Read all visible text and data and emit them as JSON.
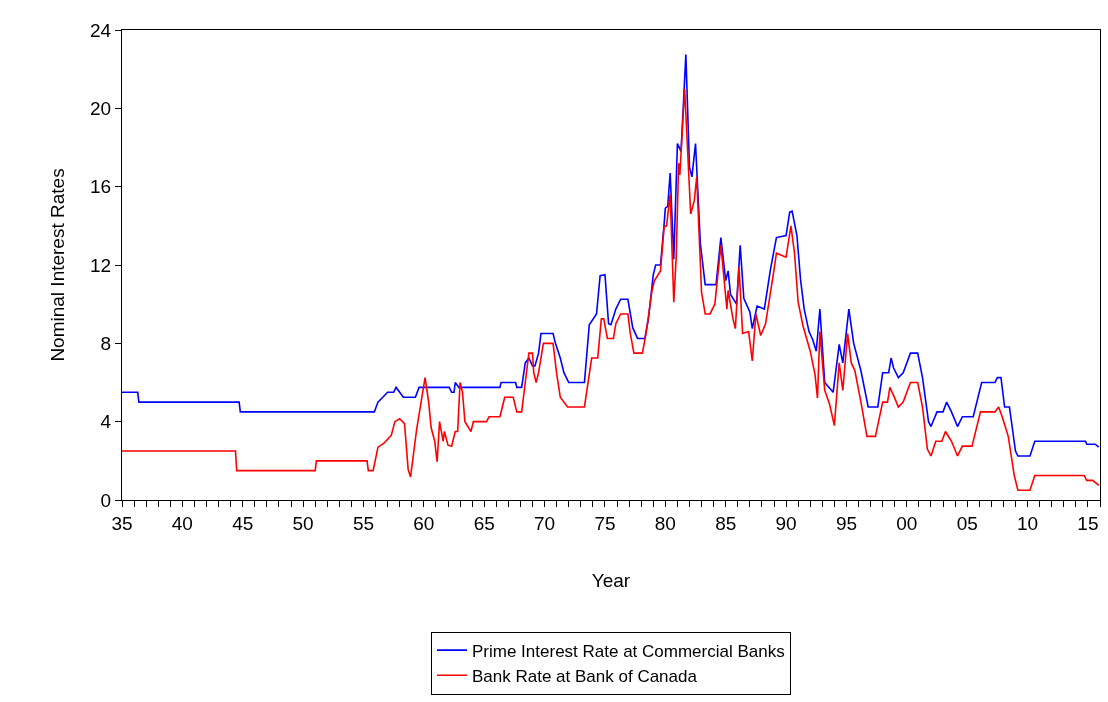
{
  "chart_data": {
    "type": "line",
    "xlabel": "Year",
    "ylabel": "Nominal Interest Rates",
    "legend": "bottom",
    "xlim": [
      1935,
      2016
    ],
    "ylim": [
      0,
      24
    ],
    "yticks": [
      0,
      4,
      8,
      12,
      16,
      20,
      24
    ],
    "xticks": [
      {
        "value": 1935,
        "label": "35"
      },
      {
        "value": 1936,
        "label": null
      },
      {
        "value": 1937,
        "label": null
      },
      {
        "value": 1938,
        "label": null
      },
      {
        "value": 1939,
        "label": null
      },
      {
        "value": 1940,
        "label": "40"
      },
      {
        "value": 1941,
        "label": null
      },
      {
        "value": 1942,
        "label": null
      },
      {
        "value": 1943,
        "label": null
      },
      {
        "value": 1944,
        "label": null
      },
      {
        "value": 1945,
        "label": "45"
      },
      {
        "value": 1946,
        "label": null
      },
      {
        "value": 1947,
        "label": null
      },
      {
        "value": 1948,
        "label": null
      },
      {
        "value": 1949,
        "label": null
      },
      {
        "value": 1950,
        "label": "50"
      },
      {
        "value": 1951,
        "label": null
      },
      {
        "value": 1952,
        "label": null
      },
      {
        "value": 1953,
        "label": null
      },
      {
        "value": 1954,
        "label": null
      },
      {
        "value": 1955,
        "label": "55"
      },
      {
        "value": 1956,
        "label": null
      },
      {
        "value": 1957,
        "label": null
      },
      {
        "value": 1958,
        "label": null
      },
      {
        "value": 1959,
        "label": null
      },
      {
        "value": 1960,
        "label": "60"
      },
      {
        "value": 1961,
        "label": null
      },
      {
        "value": 1962,
        "label": null
      },
      {
        "value": 1963,
        "label": null
      },
      {
        "value": 1964,
        "label": null
      },
      {
        "value": 1965,
        "label": "65"
      },
      {
        "value": 1966,
        "label": null
      },
      {
        "value": 1967,
        "label": null
      },
      {
        "value": 1968,
        "label": null
      },
      {
        "value": 1969,
        "label": null
      },
      {
        "value": 1970,
        "label": "70"
      },
      {
        "value": 1971,
        "label": null
      },
      {
        "value": 1972,
        "label": null
      },
      {
        "value": 1973,
        "label": null
      },
      {
        "value": 1974,
        "label": null
      },
      {
        "value": 1975,
        "label": "75"
      },
      {
        "value": 1976,
        "label": null
      },
      {
        "value": 1977,
        "label": null
      },
      {
        "value": 1978,
        "label": null
      },
      {
        "value": 1979,
        "label": null
      },
      {
        "value": 1980,
        "label": "80"
      },
      {
        "value": 1981,
        "label": null
      },
      {
        "value": 1982,
        "label": null
      },
      {
        "value": 1983,
        "label": null
      },
      {
        "value": 1984,
        "label": null
      },
      {
        "value": 1985,
        "label": "85"
      },
      {
        "value": 1986,
        "label": null
      },
      {
        "value": 1987,
        "label": null
      },
      {
        "value": 1988,
        "label": null
      },
      {
        "value": 1989,
        "label": null
      },
      {
        "value": 1990,
        "label": "90"
      },
      {
        "value": 1991,
        "label": null
      },
      {
        "value": 1992,
        "label": null
      },
      {
        "value": 1993,
        "label": null
      },
      {
        "value": 1994,
        "label": null
      },
      {
        "value": 1995,
        "label": "95"
      },
      {
        "value": 1996,
        "label": null
      },
      {
        "value": 1997,
        "label": null
      },
      {
        "value": 1998,
        "label": null
      },
      {
        "value": 1999,
        "label": null
      },
      {
        "value": 2000,
        "label": "00"
      },
      {
        "value": 2001,
        "label": null
      },
      {
        "value": 2002,
        "label": null
      },
      {
        "value": 2003,
        "label": null
      },
      {
        "value": 2004,
        "label": null
      },
      {
        "value": 2005,
        "label": "05"
      },
      {
        "value": 2006,
        "label": null
      },
      {
        "value": 2007,
        "label": null
      },
      {
        "value": 2008,
        "label": null
      },
      {
        "value": 2009,
        "label": null
      },
      {
        "value": 2010,
        "label": "10"
      },
      {
        "value": 2011,
        "label": null
      },
      {
        "value": 2012,
        "label": null
      },
      {
        "value": 2013,
        "label": null
      },
      {
        "value": 2014,
        "label": null
      },
      {
        "value": 2015,
        "label": "15"
      },
      {
        "value": 2016,
        "label": null
      }
    ],
    "series": [
      {
        "name": "Prime Interest Rate at Commercial Banks",
        "color": "#0000ff",
        "x": [
          1935,
          1936.3,
          1936.4,
          1944.7,
          1944.8,
          1955.9,
          1956.2,
          1956.6,
          1957.0,
          1957.5,
          1957.7,
          1958.0,
          1958.3,
          1959.3,
          1959.6,
          1962.1,
          1962.3,
          1962.5,
          1962.6,
          1962.9,
          1966.3,
          1966.4,
          1967.6,
          1967.7,
          1968.1,
          1968.4,
          1968.7,
          1969.0,
          1969.2,
          1969.5,
          1969.7,
          1970.7,
          1970.9,
          1971.3,
          1971.6,
          1972.0,
          1973.3,
          1973.7,
          1974.3,
          1974.6,
          1975.0,
          1975.3,
          1975.5,
          1975.9,
          1976.3,
          1976.9,
          1977.3,
          1977.7,
          1978.3,
          1978.6,
          1979.0,
          1979.2,
          1979.6,
          1979.9,
          1980.0,
          1980.2,
          1980.4,
          1980.7,
          1981.0,
          1981.3,
          1981.7,
          1982.0,
          1982.2,
          1982.5,
          1982.9,
          1983.3,
          1984.2,
          1984.6,
          1985.0,
          1985.2,
          1985.4,
          1985.9,
          1986.2,
          1986.5,
          1987.0,
          1987.2,
          1987.6,
          1988.2,
          1988.7,
          1989.2,
          1990.0,
          1990.3,
          1990.5,
          1990.9,
          1991.2,
          1991.5,
          1991.9,
          1992.2,
          1992.5,
          1992.8,
          1993.2,
          1993.9,
          1994.4,
          1994.7,
          1995.2,
          1995.6,
          1996.2,
          1996.8,
          1997.6,
          1998.0,
          1998.5,
          1998.7,
          1998.9,
          1999.3,
          1999.7,
          2000.3,
          2000.9,
          2001.3,
          2001.8,
          2002.0,
          2002.5,
          2003.0,
          2003.3,
          2003.7,
          2004.2,
          2004.6,
          2005.5,
          2006.2,
          2007.3,
          2007.5,
          2007.8,
          2008.1,
          2008.5,
          2009.0,
          2009.2,
          2010.2,
          2010.6,
          2014.8,
          2014.9,
          2015.6,
          2015.9
        ],
        "values": [
          5.5,
          5.5,
          5.0,
          5.0,
          4.5,
          4.5,
          5.0,
          5.25,
          5.5,
          5.5,
          5.75,
          5.5,
          5.25,
          5.25,
          5.75,
          5.75,
          5.5,
          5.5,
          6.0,
          5.75,
          5.75,
          6.0,
          6.0,
          5.75,
          5.75,
          7.0,
          7.25,
          6.85,
          6.85,
          7.5,
          8.5,
          8.5,
          8.0,
          7.25,
          6.5,
          6.0,
          6.0,
          8.95,
          9.5,
          11.45,
          11.5,
          9.0,
          8.95,
          9.75,
          10.25,
          10.25,
          8.8,
          8.25,
          8.25,
          9.25,
          11.5,
          12.0,
          12.0,
          14.1,
          14.9,
          15.0,
          16.7,
          12.3,
          18.2,
          17.8,
          22.75,
          17.0,
          16.5,
          18.2,
          13.1,
          11.0,
          11.0,
          13.4,
          11.2,
          11.7,
          10.5,
          10.0,
          13.0,
          10.3,
          9.6,
          8.75,
          9.9,
          9.75,
          11.75,
          13.4,
          13.5,
          14.7,
          14.75,
          13.5,
          11.25,
          9.75,
          8.6,
          8.2,
          7.6,
          9.75,
          6.0,
          5.5,
          7.95,
          7.0,
          9.75,
          8.0,
          6.6,
          4.75,
          4.75,
          6.5,
          6.5,
          7.25,
          6.75,
          6.25,
          6.5,
          7.5,
          7.5,
          6.25,
          4.0,
          3.75,
          4.5,
          4.5,
          5.0,
          4.5,
          3.75,
          4.25,
          4.25,
          6.0,
          6.0,
          6.25,
          6.25,
          4.75,
          4.75,
          2.5,
          2.25,
          2.25,
          3.0,
          3.0,
          2.85,
          2.85,
          2.7
        ]
      },
      {
        "name": "Bank Rate at Bank of Canada",
        "color": "#ff0000",
        "x": [
          1935,
          1944.4,
          1944.5,
          1951.0,
          1951.1,
          1955.3,
          1955.4,
          1955.8,
          1956.2,
          1956.7,
          1957.3,
          1957.6,
          1958.0,
          1958.4,
          1958.7,
          1958.9,
          1959.4,
          1960.1,
          1960.4,
          1960.6,
          1960.9,
          1961.1,
          1961.3,
          1961.6,
          1961.7,
          1962.0,
          1962.3,
          1962.6,
          1962.8,
          1963.0,
          1963.2,
          1963.4,
          1963.9,
          1964.1,
          1965.2,
          1965.4,
          1966.3,
          1966.5,
          1966.7,
          1967.4,
          1967.7,
          1968.1,
          1968.4,
          1968.7,
          1969.0,
          1969.1,
          1969.3,
          1969.5,
          1969.9,
          1970.7,
          1971.0,
          1971.3,
          1971.9,
          1973.3,
          1973.9,
          1974.4,
          1974.7,
          1974.9,
          1975.2,
          1975.7,
          1975.9,
          1976.3,
          1976.9,
          1977.1,
          1977.4,
          1978.1,
          1978.4,
          1978.9,
          1979.1,
          1979.6,
          1979.9,
          1980.1,
          1980.4,
          1980.7,
          1980.9,
          1981.1,
          1981.2,
          1981.6,
          1982.1,
          1982.4,
          1982.6,
          1983.0,
          1983.3,
          1983.7,
          1984.1,
          1984.6,
          1985.1,
          1985.2,
          1985.6,
          1985.8,
          1986.1,
          1986.4,
          1986.9,
          1987.2,
          1987.5,
          1987.9,
          1988.3,
          1989.0,
          1989.2,
          1990.0,
          1990.4,
          1990.7,
          1991.0,
          1991.4,
          1992.0,
          1992.4,
          1992.6,
          1992.8,
          1993.2,
          1993.6,
          1994.0,
          1994.4,
          1994.7,
          1995.1,
          1995.4,
          1995.7,
          1996.2,
          1996.7,
          1997.4,
          1998.0,
          1998.4,
          1998.6,
          1999.0,
          1999.3,
          1999.7,
          2000.3,
          2000.9,
          2001.3,
          2001.7,
          2002.0,
          2002.4,
          2002.9,
          2003.2,
          2003.7,
          2004.2,
          2004.6,
          2005.4,
          2006.1,
          2007.3,
          2007.6,
          2007.9,
          2008.4,
          2008.9,
          2009.2,
          2010.2,
          2010.6,
          2014.7,
          2014.9,
          2015.4,
          2015.9
        ],
        "values": [
          2.5,
          2.5,
          1.5,
          1.5,
          2.0,
          2.0,
          1.5,
          1.5,
          2.7,
          2.9,
          3.3,
          4.0,
          4.15,
          3.9,
          1.55,
          1.18,
          3.6,
          6.25,
          5.0,
          3.7,
          3.0,
          1.95,
          4.0,
          3.0,
          3.5,
          2.8,
          2.75,
          3.5,
          3.5,
          6.0,
          5.5,
          4.0,
          3.5,
          4.0,
          4.0,
          4.25,
          4.25,
          4.75,
          5.25,
          5.25,
          4.5,
          4.5,
          6.0,
          7.5,
          7.5,
          6.5,
          6.0,
          6.5,
          8.0,
          8.0,
          6.45,
          5.25,
          4.75,
          4.75,
          7.25,
          7.25,
          9.25,
          9.25,
          8.25,
          8.25,
          9.0,
          9.5,
          9.5,
          8.5,
          7.5,
          7.5,
          8.5,
          10.7,
          11.2,
          11.7,
          13.95,
          14.0,
          15.6,
          10.1,
          12.4,
          17.2,
          16.6,
          21.0,
          14.6,
          15.3,
          16.5,
          10.6,
          9.5,
          9.5,
          10.0,
          13.0,
          9.75,
          10.7,
          9.25,
          8.75,
          11.9,
          8.5,
          8.6,
          7.1,
          9.5,
          8.4,
          9.0,
          11.75,
          12.6,
          12.4,
          14.0,
          12.6,
          10.1,
          8.9,
          7.6,
          6.4,
          5.2,
          8.6,
          5.6,
          4.9,
          3.8,
          7.0,
          5.6,
          8.5,
          7.0,
          6.6,
          5.0,
          3.25,
          3.25,
          5.0,
          5.0,
          5.75,
          5.2,
          4.75,
          5.0,
          6.0,
          6.0,
          4.75,
          2.6,
          2.25,
          3.0,
          3.0,
          3.5,
          3.0,
          2.25,
          2.75,
          2.75,
          4.5,
          4.5,
          4.75,
          4.25,
          3.25,
          1.25,
          0.5,
          0.5,
          1.25,
          1.25,
          1.0,
          1.0,
          0.75
        ]
      }
    ]
  }
}
